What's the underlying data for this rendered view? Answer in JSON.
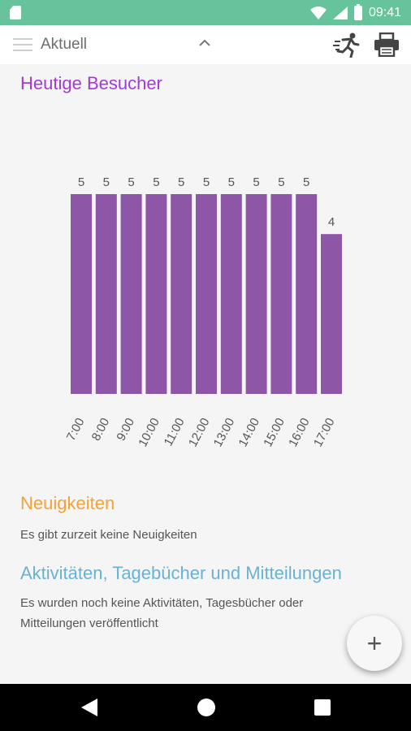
{
  "status_bar": {
    "time": "09:41"
  },
  "toolbar": {
    "title": "Aktuell"
  },
  "visitors": {
    "title": "Heutige Besucher"
  },
  "chart_data": {
    "type": "bar",
    "title": "Heutige Besucher",
    "categories": [
      "7:00",
      "8:00",
      "9:00",
      "10:00",
      "11:00",
      "12:00",
      "13:00",
      "14:00",
      "15:00",
      "16:00",
      "17:00"
    ],
    "values": [
      5,
      5,
      5,
      5,
      5,
      5,
      5,
      5,
      5,
      5,
      4
    ],
    "ylim": [
      0,
      5
    ],
    "bar_color": "#8e56a7",
    "grid": false,
    "legend": "none"
  },
  "news": {
    "title": "Neuigkeiten",
    "text": "Es gibt zurzeit keine Neuigkeiten"
  },
  "activities": {
    "title": "Aktivitäten, Tagebücher und Mitteilungen",
    "text": "Es wurden noch keine Aktivitäten, Tagesbücher oder Mitteilungen veröffentlicht"
  },
  "fab": {
    "label": "+"
  },
  "colors": {
    "status_bar": "#66c39b",
    "visitors_title": "#a23bd6",
    "news_title": "#f2a23a",
    "activities_title": "#6ab2d3"
  },
  "icons": {
    "menu": "menu-icon",
    "caret": "chevron-up-icon",
    "runner": "running-person-icon",
    "printer": "printer-icon"
  }
}
